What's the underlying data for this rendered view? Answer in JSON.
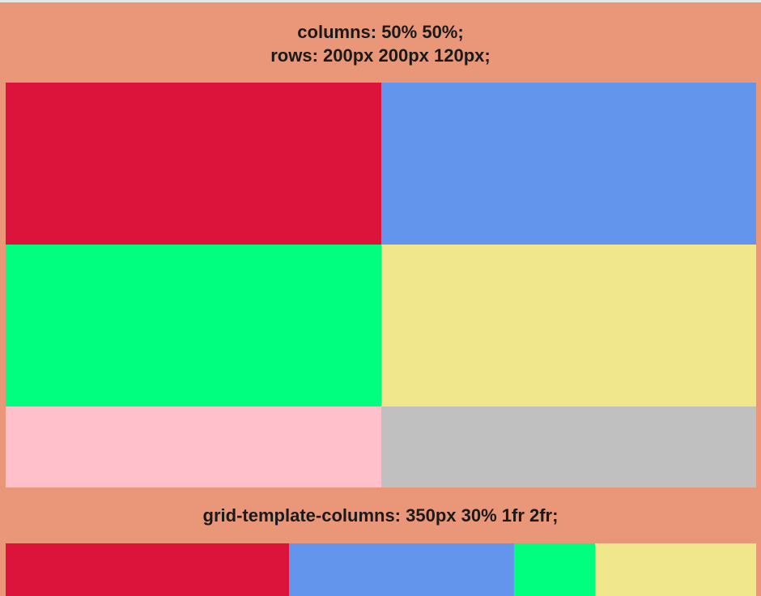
{
  "section1": {
    "heading_line1": "columns: 50% 50%;",
    "heading_line2": "rows: 200px 200px 120px;",
    "cells": [
      {
        "color": "#dc143c"
      },
      {
        "color": "#6495ed"
      },
      {
        "color": "#00ff7f"
      },
      {
        "color": "#f0e68c"
      },
      {
        "color": "#ffc0cb"
      },
      {
        "color": "#c0c0c0"
      }
    ]
  },
  "section2": {
    "heading": "grid-template-columns: 350px 30% 1fr 2fr;",
    "cells": [
      {
        "color": "#dc143c"
      },
      {
        "color": "#6495ed"
      },
      {
        "color": "#00ff7f"
      },
      {
        "color": "#f0e68c"
      }
    ]
  },
  "colors": {
    "background": "#ea9679",
    "heading_text": "#1a1a1a"
  }
}
